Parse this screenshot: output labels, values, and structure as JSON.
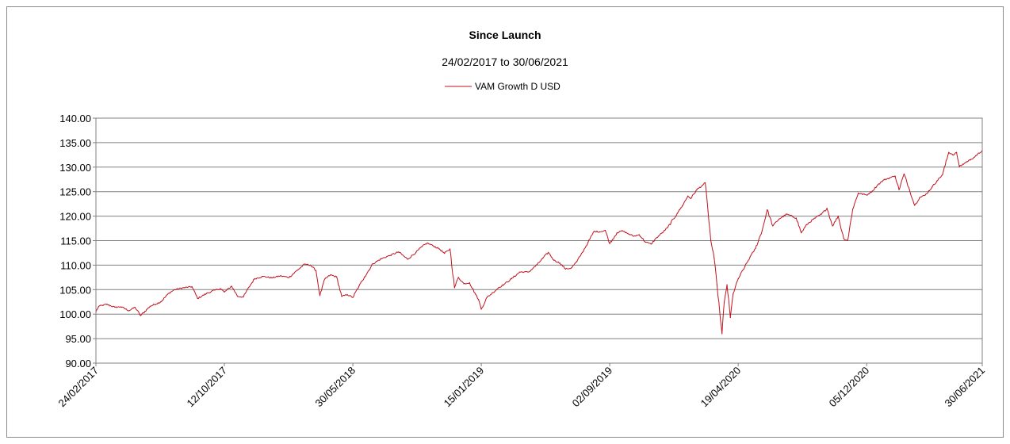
{
  "chart_data": {
    "type": "line",
    "title": "Since Launch",
    "subtitle": "24/02/2017 to 30/06/2021",
    "xlabel": "",
    "ylabel": "",
    "ylim": [
      90,
      140
    ],
    "y_ticks": [
      "90.00",
      "95.00",
      "100.00",
      "105.00",
      "110.00",
      "115.00",
      "120.00",
      "125.00",
      "130.00",
      "135.00",
      "140.00"
    ],
    "x_tick_labels": [
      "24/02/2017",
      "12/10/2017",
      "30/05/2018",
      "15/01/2019",
      "02/09/2019",
      "19/04/2020",
      "05/12/2020",
      "30/06/2021"
    ],
    "grid": true,
    "legend_position": "top-center",
    "series": [
      {
        "name": "VAM Growth D USD",
        "color": "#c0141e",
        "points": [
          [
            "24/02/2017",
            100.5
          ],
          [
            "01/03/2017",
            101.6
          ],
          [
            "15/03/2017",
            102.0
          ],
          [
            "30/03/2017",
            101.4
          ],
          [
            "10/04/2017",
            101.5
          ],
          [
            "24/04/2017",
            100.7
          ],
          [
            "05/05/2017",
            101.4
          ],
          [
            "15/05/2017",
            99.7
          ],
          [
            "01/06/2017",
            101.6
          ],
          [
            "20/06/2017",
            102.5
          ],
          [
            "05/07/2017",
            104.3
          ],
          [
            "15/07/2017",
            105.0
          ],
          [
            "01/08/2017",
            105.4
          ],
          [
            "15/08/2017",
            105.6
          ],
          [
            "25/08/2017",
            103.2
          ],
          [
            "10/09/2017",
            104.2
          ],
          [
            "25/09/2017",
            104.9
          ],
          [
            "05/10/2017",
            105.2
          ],
          [
            "12/10/2017",
            104.5
          ],
          [
            "25/10/2017",
            105.7
          ],
          [
            "05/11/2017",
            103.6
          ],
          [
            "15/11/2017",
            103.5
          ],
          [
            "25/11/2017",
            105.5
          ],
          [
            "05/12/2017",
            107.2
          ],
          [
            "20/12/2017",
            107.7
          ],
          [
            "05/01/2018",
            107.4
          ],
          [
            "20/01/2018",
            107.8
          ],
          [
            "05/02/2018",
            107.5
          ],
          [
            "20/02/2018",
            109.0
          ],
          [
            "05/03/2018",
            110.2
          ],
          [
            "15/03/2018",
            110.0
          ],
          [
            "25/03/2018",
            108.9
          ],
          [
            "01/04/2018",
            103.8
          ],
          [
            "10/04/2018",
            107.2
          ],
          [
            "20/04/2018",
            108.0
          ],
          [
            "01/05/2018",
            107.6
          ],
          [
            "10/05/2018",
            103.6
          ],
          [
            "20/05/2018",
            104.0
          ],
          [
            "30/05/2018",
            103.4
          ],
          [
            "10/06/2018",
            105.7
          ],
          [
            "20/06/2018",
            107.6
          ],
          [
            "05/07/2018",
            110.3
          ],
          [
            "20/07/2018",
            111.3
          ],
          [
            "05/08/2018",
            112.0
          ],
          [
            "20/08/2018",
            112.7
          ],
          [
            "05/09/2018",
            111.2
          ],
          [
            "20/09/2018",
            112.6
          ],
          [
            "01/10/2018",
            113.8
          ],
          [
            "10/10/2018",
            114.5
          ],
          [
            "20/10/2018",
            114.0
          ],
          [
            "01/11/2018",
            113.3
          ],
          [
            "10/11/2018",
            112.4
          ],
          [
            "20/11/2018",
            113.3
          ],
          [
            "28/11/2018",
            105.4
          ],
          [
            "05/12/2018",
            107.5
          ],
          [
            "15/12/2018",
            106.2
          ],
          [
            "25/12/2018",
            106.4
          ],
          [
            "05/01/2019",
            104.0
          ],
          [
            "10/01/2019",
            103.0
          ],
          [
            "15/01/2019",
            101.0
          ],
          [
            "25/01/2019",
            103.4
          ],
          [
            "05/02/2019",
            104.4
          ],
          [
            "15/02/2019",
            105.4
          ],
          [
            "25/02/2019",
            106.1
          ],
          [
            "10/03/2019",
            107.2
          ],
          [
            "25/03/2019",
            108.6
          ],
          [
            "10/04/2019",
            108.6
          ],
          [
            "25/04/2019",
            110.1
          ],
          [
            "05/05/2019",
            111.4
          ],
          [
            "15/05/2019",
            112.6
          ],
          [
            "25/05/2019",
            111.0
          ],
          [
            "05/06/2019",
            110.4
          ],
          [
            "15/06/2019",
            109.2
          ],
          [
            "25/06/2019",
            109.4
          ],
          [
            "05/07/2019",
            110.7
          ],
          [
            "15/07/2019",
            112.6
          ],
          [
            "25/07/2019",
            114.6
          ],
          [
            "05/08/2019",
            116.9
          ],
          [
            "15/08/2019",
            116.8
          ],
          [
            "25/08/2019",
            117.1
          ],
          [
            "02/09/2019",
            114.4
          ],
          [
            "15/09/2019",
            116.6
          ],
          [
            "25/09/2019",
            117.0
          ],
          [
            "05/10/2019",
            116.4
          ],
          [
            "15/10/2019",
            115.9
          ],
          [
            "25/10/2019",
            116.2
          ],
          [
            "05/11/2019",
            114.7
          ],
          [
            "15/11/2019",
            114.3
          ],
          [
            "25/11/2019",
            115.6
          ],
          [
            "05/12/2019",
            116.6
          ],
          [
            "15/12/2019",
            117.7
          ],
          [
            "01/01/2020",
            120.6
          ],
          [
            "10/01/2020",
            122.1
          ],
          [
            "20/01/2020",
            124.1
          ],
          [
            "25/01/2020",
            123.6
          ],
          [
            "05/02/2020",
            125.4
          ],
          [
            "15/02/2020",
            126.3
          ],
          [
            "20/02/2020",
            126.8
          ],
          [
            "25/02/2020",
            121.0
          ],
          [
            "01/03/2020",
            115.0
          ],
          [
            "07/03/2020",
            111.4
          ],
          [
            "12/03/2020",
            106.0
          ],
          [
            "17/03/2020",
            100.4
          ],
          [
            "21/03/2020",
            96.0
          ],
          [
            "25/03/2020",
            102.4
          ],
          [
            "30/03/2020",
            106.0
          ],
          [
            "05/04/2020",
            99.3
          ],
          [
            "10/04/2020",
            104.2
          ],
          [
            "19/04/2020",
            107.2
          ],
          [
            "01/05/2020",
            109.7
          ],
          [
            "10/05/2020",
            111.6
          ],
          [
            "20/05/2020",
            113.4
          ],
          [
            "01/06/2020",
            117.1
          ],
          [
            "10/06/2020",
            121.3
          ],
          [
            "20/06/2020",
            118.0
          ],
          [
            "01/07/2020",
            119.4
          ],
          [
            "15/07/2020",
            120.4
          ],
          [
            "01/08/2020",
            119.6
          ],
          [
            "10/08/2020",
            116.6
          ],
          [
            "20/08/2020",
            118.3
          ],
          [
            "01/09/2020",
            119.4
          ],
          [
            "15/09/2020",
            120.4
          ],
          [
            "25/09/2020",
            121.6
          ],
          [
            "05/10/2020",
            118.0
          ],
          [
            "15/10/2020",
            120.0
          ],
          [
            "25/10/2020",
            115.4
          ],
          [
            "01/11/2020",
            115.0
          ],
          [
            "10/11/2020",
            121.4
          ],
          [
            "20/11/2020",
            124.7
          ],
          [
            "05/12/2020",
            124.3
          ],
          [
            "15/12/2020",
            125.1
          ],
          [
            "25/12/2020",
            126.4
          ],
          [
            "05/01/2021",
            127.4
          ],
          [
            "15/01/2021",
            127.8
          ],
          [
            "25/01/2021",
            128.2
          ],
          [
            "01/02/2021",
            125.4
          ],
          [
            "10/02/2021",
            128.6
          ],
          [
            "20/02/2021",
            125.3
          ],
          [
            "01/03/2021",
            122.2
          ],
          [
            "10/03/2021",
            123.8
          ],
          [
            "20/03/2021",
            124.3
          ],
          [
            "01/04/2021",
            125.9
          ],
          [
            "10/04/2021",
            127.2
          ],
          [
            "20/04/2021",
            128.5
          ],
          [
            "01/05/2021",
            133.0
          ],
          [
            "10/05/2021",
            132.5
          ],
          [
            "15/05/2021",
            133.0
          ],
          [
            "20/05/2021",
            130.1
          ],
          [
            "01/06/2021",
            131.0
          ],
          [
            "10/06/2021",
            131.6
          ],
          [
            "20/06/2021",
            132.4
          ],
          [
            "30/06/2021",
            133.4
          ]
        ]
      }
    ]
  }
}
